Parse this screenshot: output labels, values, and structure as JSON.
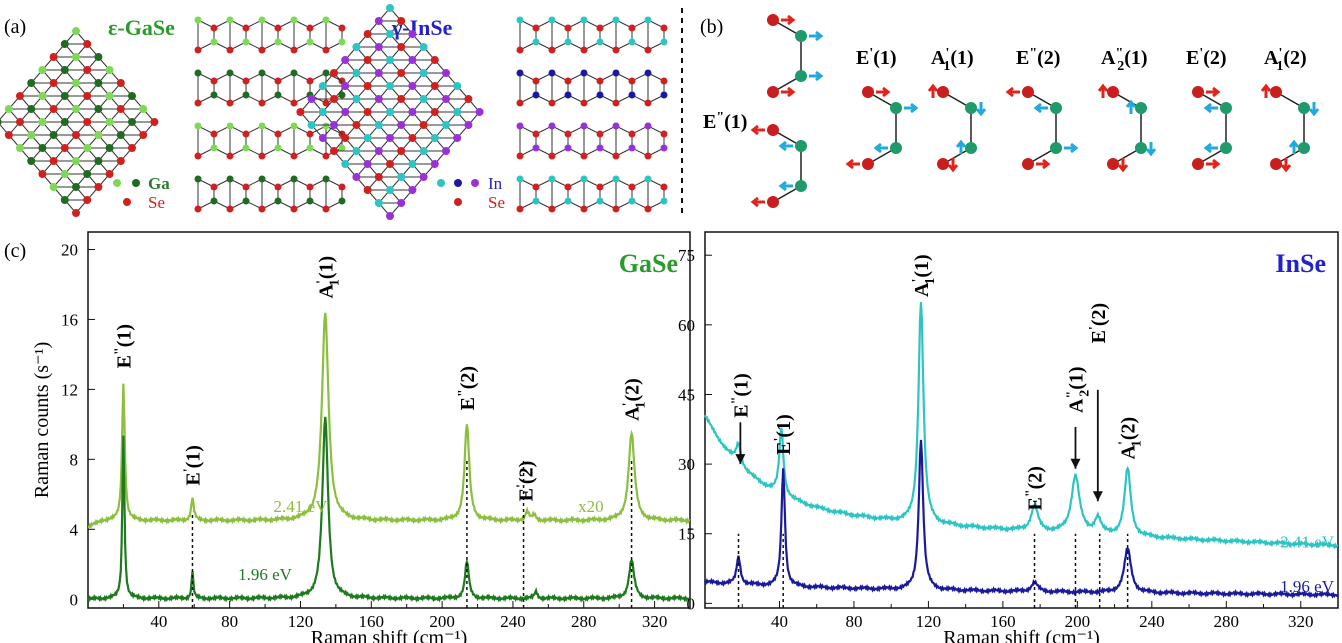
{
  "panel_labels": {
    "a": "(a)",
    "b": "(b)",
    "c": "(c)"
  },
  "structures": {
    "gase_title": "ε-GaSe",
    "inse_title": "γ-InSe",
    "gase_legend": [
      "Ga",
      "Se"
    ],
    "inse_legend": [
      "In",
      "Se"
    ]
  },
  "modes_panel": {
    "modes": [
      "E\"(1)",
      "E'(1)",
      "A'1(1)",
      "E\"(2)",
      "A\"2(1)",
      "E'(2)",
      "A'1(2)"
    ]
  },
  "colors": {
    "gase_high": "#8cbf3f",
    "gase_low": "#1e7a1e",
    "inse_high": "#2ec4c4",
    "inse_low": "#1a1a9c",
    "se": "#d0211e",
    "gase_title": "#2a9a2a",
    "inse_title": "#2222cc"
  },
  "chart_data": [
    {
      "type": "line",
      "title": "GaSe",
      "xlabel": "Raman shift (cm⁻¹)",
      "ylabel": "Raman counts (s⁻¹)",
      "xlim": [
        0,
        340
      ],
      "ylim": [
        -0.5,
        21
      ],
      "xticks": [
        40,
        80,
        120,
        160,
        200,
        240,
        280,
        320
      ],
      "yticks": [
        0,
        4,
        8,
        12,
        16,
        20
      ],
      "annotation": "x20",
      "series": [
        {
          "name": "2.41 eV",
          "color": "#8cbf3f",
          "baseline": 4.5,
          "peaks": [
            {
              "x": 20,
              "h": 7.8,
              "w": 0.9
            },
            {
              "x": 59,
              "h": 1.3,
              "w": 0.9
            },
            {
              "x": 134,
              "h": 11.9,
              "w": 2.2
            },
            {
              "x": 214,
              "h": 5.5,
              "w": 1.6
            },
            {
              "x": 248,
              "h": 0.5,
              "w": 1.2
            },
            {
              "x": 252,
              "h": 0.3,
              "w": 1.2
            },
            {
              "x": 307,
              "h": 5.0,
              "w": 2.0
            }
          ],
          "rise": {
            "x0": 0,
            "x1": 8,
            "from": 4.1
          }
        },
        {
          "name": "1.96 eV",
          "color": "#1e7a1e",
          "baseline": 0.05,
          "peaks": [
            {
              "x": 20,
              "h": 9.3,
              "w": 0.7
            },
            {
              "x": 59,
              "h": 1.6,
              "w": 0.6
            },
            {
              "x": 134,
              "h": 10.4,
              "w": 1.9
            },
            {
              "x": 214,
              "h": 2.1,
              "w": 1.3
            },
            {
              "x": 253,
              "h": 0.4,
              "w": 1.0
            },
            {
              "x": 307,
              "h": 2.2,
              "w": 1.7
            }
          ],
          "rise": {
            "x0": 0,
            "x1": 10,
            "from": 0.0
          }
        }
      ],
      "peak_labels": [
        {
          "mode": "E\"(1)",
          "x": 20,
          "y": 13.2
        },
        {
          "mode": "E'(1)",
          "x": 59,
          "y": 6.5
        },
        {
          "mode": "A'1(1)",
          "x": 134,
          "y": 17.2
        },
        {
          "mode": "E\"(2)",
          "x": 214,
          "y": 10.8
        },
        {
          "mode": "E'(2)",
          "x": 247,
          "y": 5.6
        },
        {
          "mode": "A'1(2)",
          "x": 307,
          "y": 10.2
        }
      ],
      "dashed_markers": [
        59,
        214,
        246,
        307
      ]
    },
    {
      "type": "line",
      "title": "InSe",
      "xlabel": "Raman shift (cm⁻¹)",
      "ylabel": "",
      "xlim": [
        0,
        340
      ],
      "ylim": [
        -1,
        80
      ],
      "xticks": [
        40,
        80,
        120,
        160,
        200,
        240,
        280,
        320
      ],
      "yticks": [
        0,
        15,
        30,
        45,
        60,
        75
      ],
      "series": [
        {
          "name": "2.41 eV",
          "color": "#2ec4c4",
          "peaks": [
            {
              "x": 18,
              "h": 4.5,
              "w": 1.5
            },
            {
              "x": 41,
              "h": 14.5,
              "w": 1.3
            },
            {
              "x": 116,
              "h": 48,
              "w": 1.6
            },
            {
              "x": 177,
              "h": 5.5,
              "w": 2.2
            },
            {
              "x": 199,
              "h": 12.5,
              "w": 2.6
            },
            {
              "x": 211,
              "h": 3.5,
              "w": 2.0
            },
            {
              "x": 227,
              "h": 14.5,
              "w": 2.0
            }
          ],
          "bg": {
            "a": 20,
            "b": 14,
            "c": 0.025,
            "d": 6.5
          }
        },
        {
          "name": "1.96 eV",
          "color": "#1a1a9c",
          "peaks": [
            {
              "x": 18,
              "h": 6.0,
              "w": 1.2
            },
            {
              "x": 42,
              "h": 25.5,
              "w": 1.1
            },
            {
              "x": 116,
              "h": 32.5,
              "w": 1.4
            },
            {
              "x": 177,
              "h": 2.0,
              "w": 2.0
            },
            {
              "x": 227,
              "h": 9.5,
              "w": 2.2
            }
          ],
          "bg": {
            "a": 1.0,
            "b": 3.0,
            "c": 0.015,
            "d": 0.6
          }
        }
      ],
      "peak_labels": [
        {
          "mode": "E\"(1)",
          "x": 19,
          "y": 40
        },
        {
          "mode": "E'(1)",
          "x": 42,
          "y": 32
        },
        {
          "mode": "A'1(1)",
          "x": 116,
          "y": 66
        },
        {
          "mode": "E\"(2)",
          "x": 177,
          "y": 20
        },
        {
          "mode": "A\"2(1)",
          "x": 199,
          "y": 41
        },
        {
          "mode": "E'(2)",
          "x": 211,
          "y": 56
        },
        {
          "mode": "A'1(2)",
          "x": 227,
          "y": 31
        }
      ],
      "arrows": [
        {
          "x": 19,
          "y_from": 39,
          "y_to": 30
        },
        {
          "x": 199,
          "y_from": 38,
          "y_to": 29
        },
        {
          "x": 211,
          "y_from": 46,
          "y_to": 22
        }
      ],
      "dashed_markers": [
        18,
        42,
        177,
        199,
        212,
        227
      ]
    }
  ]
}
